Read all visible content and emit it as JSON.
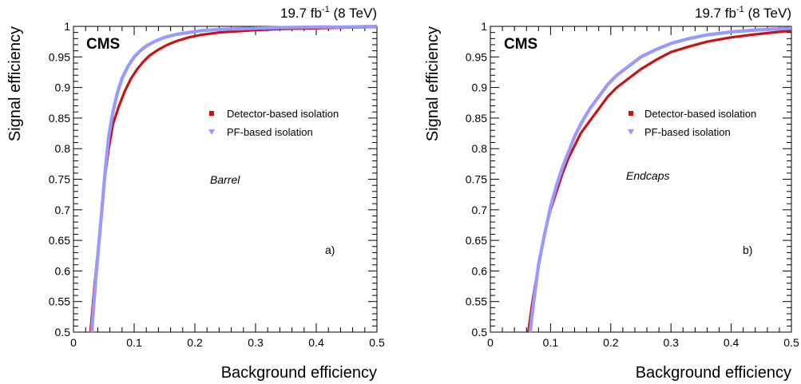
{
  "chart_data": [
    {
      "type": "line",
      "panel_label": "a)",
      "region_label": "Barrel",
      "experiment_label": "CMS",
      "lumi_label": {
        "value": "19.7 fb",
        "exponent": "-1",
        "energy": " (8 TeV)"
      },
      "xlabel": "Background efficiency",
      "ylabel": "Signal efficiency",
      "xlim": [
        0,
        0.5
      ],
      "ylim": [
        0.5,
        1.0
      ],
      "x_ticks": [
        "0",
        "0.1",
        "0.2",
        "0.3",
        "0.4",
        "0.5"
      ],
      "y_ticks": [
        "0.5",
        "0.55",
        "0.6",
        "0.65",
        "0.7",
        "0.75",
        "0.8",
        "0.85",
        "0.9",
        "0.95",
        "1"
      ],
      "legend_position": "right",
      "series": [
        {
          "name": "Detector-based isolation",
          "color": "#cc1111",
          "marker": "square",
          "x": [
            0.028,
            0.035,
            0.043,
            0.05,
            0.058,
            0.065,
            0.075,
            0.085,
            0.095,
            0.105,
            0.115,
            0.125,
            0.14,
            0.155,
            0.17,
            0.19,
            0.21,
            0.24,
            0.27,
            0.3,
            0.35,
            0.4,
            0.45,
            0.5
          ],
          "y": [
            0.5,
            0.58,
            0.66,
            0.74,
            0.8,
            0.84,
            0.87,
            0.895,
            0.915,
            0.93,
            0.942,
            0.952,
            0.962,
            0.97,
            0.976,
            0.982,
            0.986,
            0.99,
            0.992,
            0.994,
            0.996,
            0.997,
            0.998,
            0.999
          ]
        },
        {
          "name": "PF-based isolation",
          "color": "#9999ff",
          "marker": "triangle-down",
          "x": [
            0.03,
            0.037,
            0.045,
            0.052,
            0.058,
            0.065,
            0.072,
            0.08,
            0.09,
            0.1,
            0.11,
            0.12,
            0.135,
            0.15,
            0.17,
            0.19,
            0.21,
            0.24,
            0.27,
            0.3,
            0.35,
            0.4,
            0.45,
            0.5
          ],
          "y": [
            0.5,
            0.59,
            0.68,
            0.76,
            0.82,
            0.86,
            0.89,
            0.915,
            0.935,
            0.95,
            0.96,
            0.968,
            0.976,
            0.982,
            0.987,
            0.99,
            0.993,
            0.995,
            0.996,
            0.997,
            0.998,
            0.999,
            0.999,
            1.0
          ]
        }
      ]
    },
    {
      "type": "line",
      "panel_label": "b)",
      "region_label": "Endcaps",
      "experiment_label": "CMS",
      "lumi_label": {
        "value": "19.7 fb",
        "exponent": "-1",
        "energy": " (8 TeV)"
      },
      "xlabel": "Background efficiency",
      "ylabel": "Signal efficiency",
      "xlim": [
        0,
        0.5
      ],
      "ylim": [
        0.5,
        1.0
      ],
      "x_ticks": [
        "0",
        "0.1",
        "0.2",
        "0.3",
        "0.4",
        "0.5"
      ],
      "y_ticks": [
        "0.5",
        "0.55",
        "0.6",
        "0.65",
        "0.7",
        "0.75",
        "0.8",
        "0.85",
        "0.9",
        "0.95",
        "1"
      ],
      "legend_position": "right",
      "series": [
        {
          "name": "Detector-based isolation",
          "color": "#cc1111",
          "marker": "square",
          "x": [
            0.063,
            0.07,
            0.08,
            0.09,
            0.1,
            0.11,
            0.12,
            0.13,
            0.14,
            0.15,
            0.165,
            0.18,
            0.195,
            0.21,
            0.23,
            0.25,
            0.275,
            0.3,
            0.33,
            0.36,
            0.4,
            0.44,
            0.48,
            0.5
          ],
          "y": [
            0.5,
            0.55,
            0.61,
            0.66,
            0.7,
            0.73,
            0.76,
            0.785,
            0.805,
            0.825,
            0.845,
            0.865,
            0.885,
            0.9,
            0.915,
            0.93,
            0.945,
            0.958,
            0.967,
            0.975,
            0.982,
            0.987,
            0.991,
            0.993
          ]
        },
        {
          "name": "PF-based isolation",
          "color": "#9999ff",
          "marker": "triangle-down",
          "x": [
            0.066,
            0.072,
            0.08,
            0.09,
            0.1,
            0.11,
            0.12,
            0.13,
            0.14,
            0.15,
            0.165,
            0.18,
            0.195,
            0.21,
            0.23,
            0.25,
            0.275,
            0.3,
            0.33,
            0.36,
            0.4,
            0.44,
            0.48,
            0.5
          ],
          "y": [
            0.5,
            0.55,
            0.61,
            0.66,
            0.705,
            0.74,
            0.77,
            0.795,
            0.82,
            0.84,
            0.865,
            0.885,
            0.905,
            0.92,
            0.935,
            0.95,
            0.962,
            0.972,
            0.98,
            0.986,
            0.991,
            0.994,
            0.996,
            0.997
          ]
        }
      ]
    }
  ]
}
